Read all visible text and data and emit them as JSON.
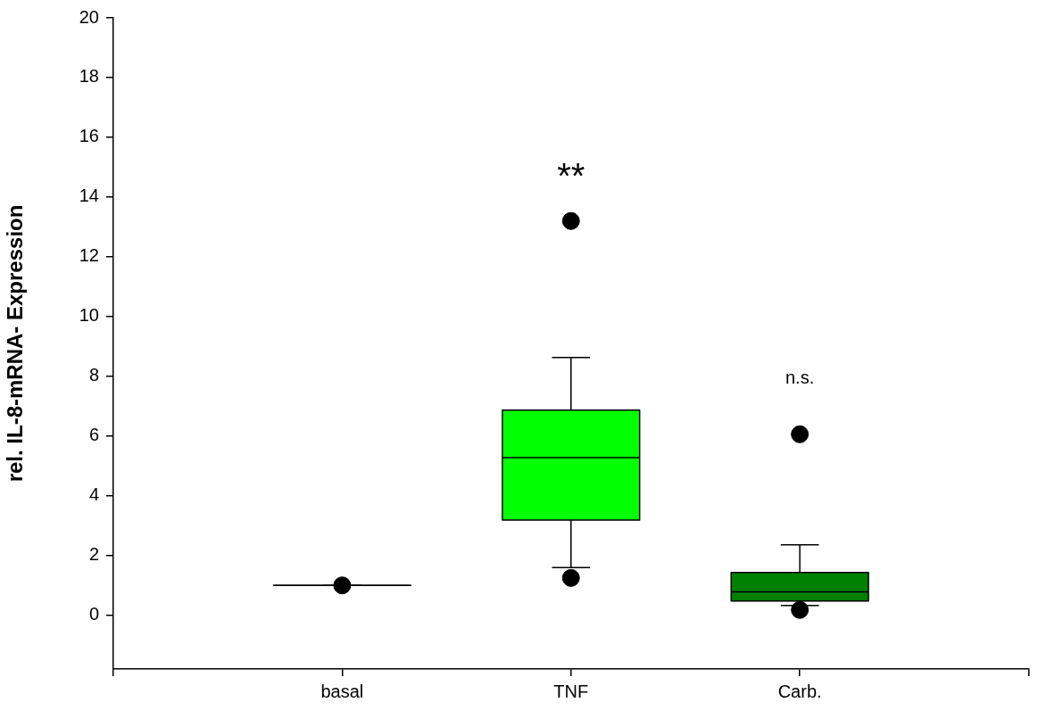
{
  "chart_data": {
    "type": "box",
    "ylabel": "rel. IL-8-mRNA- Expression",
    "categories": [
      "basal",
      "TNF",
      "Carb."
    ],
    "colors": [
      "#000000",
      "#00ff00",
      "#008000"
    ],
    "boxes": [
      {
        "low": 1,
        "q1": 1,
        "median": 1,
        "q3": 1,
        "high": 1,
        "outliers": [
          1
        ]
      },
      {
        "low": 1.6,
        "q1": 3.19,
        "median": 5.28,
        "q3": 6.87,
        "high": 8.63,
        "outliers": [
          13.2,
          1.25
        ]
      },
      {
        "low": 0.33,
        "q1": 0.48,
        "median": 0.78,
        "q3": 1.43,
        "high": 2.36,
        "outliers": [
          6.06,
          0.18
        ]
      }
    ],
    "ylim": [
      -1.8,
      20
    ],
    "yticks": [
      0,
      2,
      4,
      6,
      8,
      10,
      12,
      14,
      16,
      18,
      20
    ],
    "grid": false,
    "legend": false,
    "annotations": [
      "**",
      "n.s."
    ]
  }
}
